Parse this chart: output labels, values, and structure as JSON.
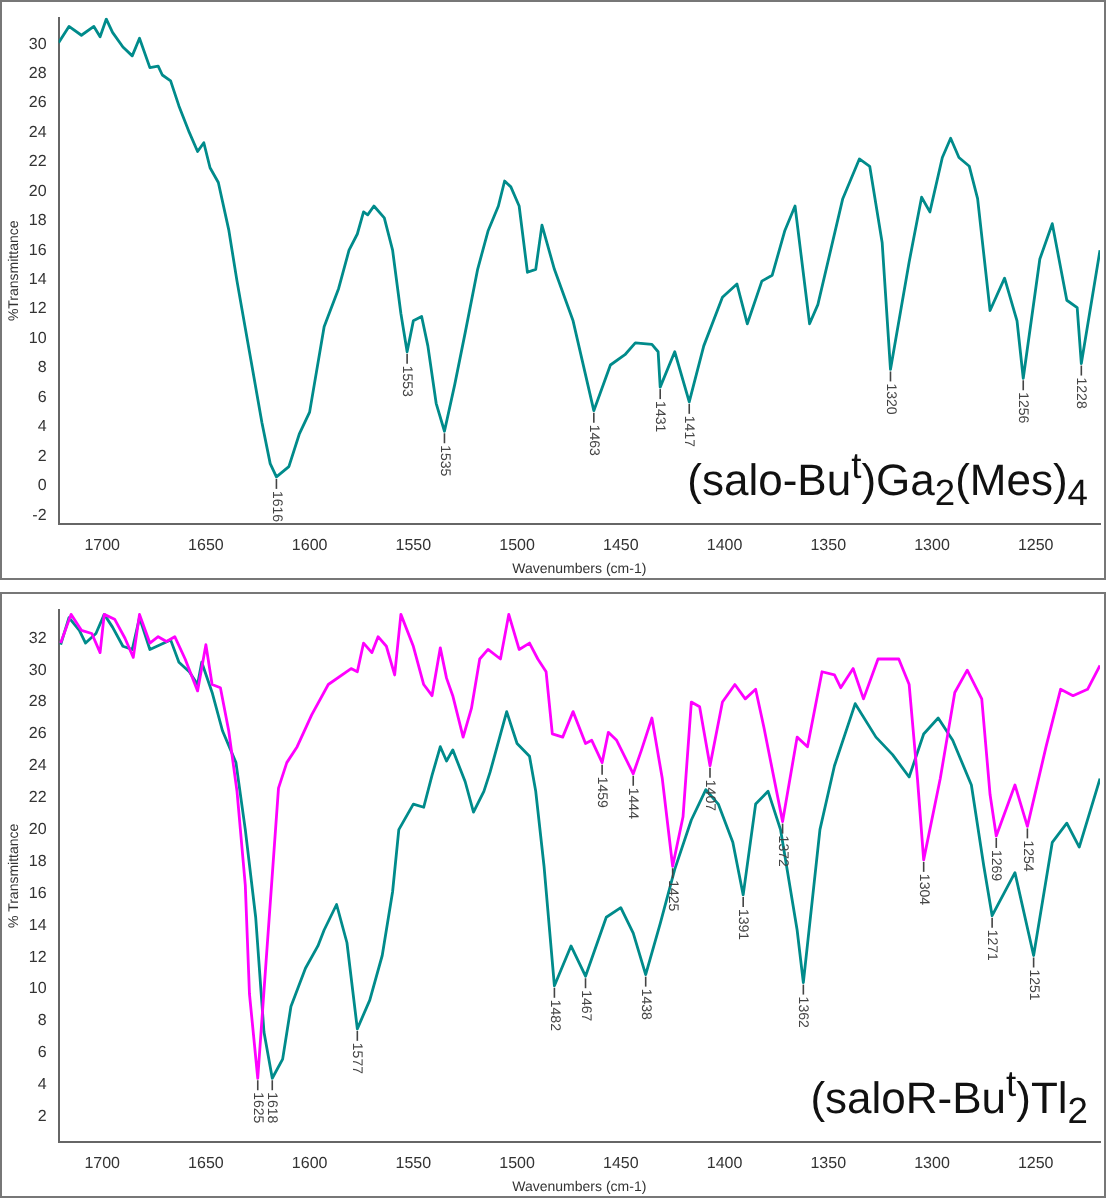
{
  "chart_data": [
    {
      "type": "line",
      "title": "(salo-Bu$^{t}$)Ga$_{2}$(Mes)$_{4}$",
      "xlabel": "Wavenumbers (cm-1)",
      "ylabel": "%Transmittance",
      "xlim": [
        1721,
        1219
      ],
      "ylim": [
        -2.6,
        31.8
      ],
      "xticks": [
        1700,
        1650,
        1600,
        1550,
        1500,
        1450,
        1400,
        1350,
        1300,
        1250
      ],
      "yticks": [
        -2,
        0,
        2,
        4,
        6,
        8,
        10,
        12,
        14,
        16,
        18,
        20,
        22,
        24,
        26,
        28,
        30
      ],
      "series": [
        {
          "color": "#008b8b",
          "x": [
            1721,
            1716,
            1710,
            1704,
            1701,
            1698,
            1695,
            1690,
            1685.5,
            1682,
            1677,
            1673,
            1671,
            1667,
            1663,
            1658,
            1654,
            1651,
            1648,
            1644,
            1639,
            1635,
            1629,
            1623,
            1619,
            1616,
            1610,
            1605,
            1600,
            1593,
            1586,
            1581,
            1577,
            1574,
            1572,
            1569,
            1564,
            1560,
            1556,
            1553,
            1550,
            1546,
            1543,
            1539,
            1535,
            1530,
            1525,
            1519,
            1514,
            1509,
            1506,
            1503,
            1499,
            1495,
            1491,
            1488,
            1482,
            1473,
            1463,
            1455,
            1448,
            1443,
            1435,
            1432,
            1431,
            1424,
            1417,
            1410,
            1401,
            1394,
            1389,
            1382,
            1377,
            1371,
            1366,
            1359,
            1355,
            1343,
            1335,
            1330,
            1324,
            1320,
            1311,
            1305,
            1301,
            1295,
            1291,
            1287,
            1282,
            1278,
            1272,
            1265,
            1259,
            1256,
            1248,
            1242,
            1235,
            1230,
            1228,
            1219
          ],
          "values": [
            30.1,
            31.2,
            30.6,
            31.2,
            30.5,
            31.7,
            30.8,
            29.8,
            29.2,
            30.4,
            28.4,
            28.5,
            27.9,
            27.5,
            25.8,
            24.0,
            22.7,
            23.3,
            21.6,
            20.6,
            17.4,
            13.9,
            9.1,
            4.3,
            1.5,
            0.6,
            1.3,
            3.5,
            5.0,
            10.8,
            13.4,
            16.0,
            17.1,
            18.6,
            18.4,
            19.0,
            18.2,
            16.0,
            11.7,
            9.1,
            11.2,
            11.5,
            9.5,
            5.6,
            3.7,
            6.9,
            10.4,
            14.7,
            17.3,
            19.0,
            20.7,
            20.3,
            19.0,
            14.5,
            14.7,
            17.7,
            14.7,
            11.2,
            5.1,
            8.2,
            8.9,
            9.7,
            9.6,
            9.1,
            6.7,
            9.1,
            5.7,
            9.5,
            12.8,
            13.7,
            11.0,
            13.9,
            14.3,
            17.3,
            19.0,
            11.0,
            12.3,
            19.5,
            22.2,
            21.7,
            16.5,
            7.9,
            15.2,
            19.6,
            18.6,
            22.3,
            23.6,
            22.3,
            21.7,
            19.5,
            11.9,
            14.1,
            11.2,
            7.3,
            15.4,
            17.8,
            12.6,
            12.1,
            8.3,
            16.0
          ]
        }
      ],
      "annotations": [
        {
          "text": "1616",
          "x": 1616,
          "y": 0.6
        },
        {
          "text": "1553",
          "x": 1553,
          "y": 9.1
        },
        {
          "text": "1535",
          "x": 1535,
          "y": 3.7
        },
        {
          "text": "1463",
          "x": 1463,
          "y": 5.1
        },
        {
          "text": "1431",
          "x": 1431,
          "y": 6.7
        },
        {
          "text": "1417",
          "x": 1417,
          "y": 5.7
        },
        {
          "text": "1320",
          "x": 1320,
          "y": 7.9
        },
        {
          "text": "1256",
          "x": 1256,
          "y": 7.3
        },
        {
          "text": "1228",
          "x": 1228,
          "y": 8.3
        }
      ]
    },
    {
      "type": "line",
      "title": "(saloR-Bu$^{t}$)Tl$_{2}$",
      "xlabel": "Wavenumbers (cm-1)",
      "ylabel": "% Transmittance",
      "xlim": [
        1721,
        1219
      ],
      "ylim": [
        0.4,
        33.8
      ],
      "xticks": [
        1700,
        1650,
        1600,
        1550,
        1500,
        1450,
        1400,
        1350,
        1300,
        1250
      ],
      "yticks": [
        2,
        4,
        6,
        8,
        10,
        12,
        14,
        16,
        18,
        20,
        22,
        24,
        26,
        28,
        30,
        32
      ],
      "series": [
        {
          "color": "#ff00ff",
          "x": [
            1720,
            1715,
            1710,
            1705,
            1701,
            1699,
            1694,
            1689,
            1685,
            1682,
            1677,
            1673,
            1669,
            1665,
            1660,
            1654,
            1650,
            1647,
            1643,
            1639,
            1635,
            1631,
            1629,
            1625,
            1621,
            1615,
            1611,
            1606,
            1599,
            1591,
            1580,
            1577,
            1574,
            1570,
            1567,
            1563,
            1559,
            1556,
            1550,
            1545,
            1541,
            1537,
            1534,
            1531,
            1526,
            1522,
            1518,
            1514,
            1508,
            1504,
            1499,
            1494,
            1490,
            1486,
            1483,
            1478,
            1473,
            1467,
            1464,
            1459,
            1456,
            1452,
            1444,
            1440,
            1435,
            1430,
            1425,
            1420,
            1416,
            1412,
            1407,
            1401,
            1395,
            1390,
            1385,
            1381,
            1372,
            1365,
            1360,
            1353,
            1347,
            1344,
            1338,
            1333,
            1326,
            1316,
            1311,
            1307,
            1304,
            1296,
            1289,
            1283,
            1276,
            1272,
            1269,
            1260,
            1254,
            1245,
            1238,
            1232,
            1225,
            1219
          ],
          "values": [
            31.7,
            33.5,
            32.5,
            32.3,
            31.1,
            33.5,
            33.2,
            32.0,
            30.8,
            33.5,
            31.7,
            32.1,
            31.8,
            32.1,
            30.7,
            28.7,
            31.6,
            29.1,
            28.9,
            26.2,
            22.4,
            16.5,
            9.7,
            4.4,
            11.7,
            22.6,
            24.2,
            25.2,
            27.2,
            29.1,
            30.1,
            29.9,
            31.7,
            31.1,
            32.1,
            31.5,
            29.7,
            33.5,
            31.5,
            29.1,
            28.4,
            31.4,
            29.5,
            28.4,
            25.8,
            27.6,
            30.7,
            31.3,
            30.7,
            33.5,
            31.3,
            31.7,
            30.7,
            29.9,
            26.0,
            25.8,
            27.4,
            25.4,
            25.6,
            24.2,
            26.1,
            25.6,
            23.5,
            25.0,
            27.0,
            23.2,
            17.7,
            20.8,
            28.0,
            27.7,
            24.0,
            28.0,
            29.1,
            28.2,
            28.8,
            26.4,
            20.5,
            25.8,
            25.2,
            29.9,
            29.7,
            28.9,
            30.1,
            28.2,
            30.7,
            30.7,
            29.1,
            23.2,
            18.1,
            23.2,
            28.6,
            30.0,
            28.2,
            22.2,
            19.6,
            22.8,
            20.2,
            25.2,
            28.8,
            28.4,
            28.8,
            30.3
          ]
        },
        {
          "color": "#008b8b",
          "x": [
            1720,
            1716,
            1711,
            1708,
            1703,
            1699,
            1695,
            1690,
            1685.5,
            1682,
            1677,
            1672,
            1667,
            1663,
            1658,
            1654,
            1652,
            1647,
            1642,
            1635.5,
            1631,
            1626,
            1622,
            1618,
            1613,
            1609,
            1602,
            1596,
            1593,
            1587,
            1582,
            1577,
            1571,
            1565,
            1560,
            1557,
            1550,
            1545,
            1541,
            1537,
            1534,
            1531,
            1525,
            1521,
            1516,
            1513,
            1505,
            1500,
            1494,
            1491,
            1487,
            1482,
            1474,
            1467,
            1457,
            1450,
            1444,
            1438,
            1431,
            1424,
            1416,
            1409,
            1403,
            1396,
            1391,
            1385,
            1379,
            1373,
            1365,
            1362,
            1354,
            1347,
            1337,
            1327,
            1319,
            1311,
            1304,
            1297,
            1290,
            1281,
            1275,
            1271,
            1260,
            1251,
            1242,
            1235,
            1229,
            1219
          ],
          "values": [
            31.6,
            33.3,
            32.5,
            31.7,
            32.3,
            33.5,
            32.7,
            31.5,
            31.3,
            33.3,
            31.3,
            31.6,
            31.9,
            30.5,
            29.9,
            29.1,
            30.5,
            28.6,
            26.2,
            24.2,
            20.0,
            14.5,
            7.3,
            4.4,
            5.6,
            8.9,
            11.3,
            12.7,
            13.7,
            15.3,
            12.9,
            7.5,
            9.3,
            12.1,
            16.1,
            20.0,
            21.6,
            21.4,
            23.4,
            25.2,
            24.3,
            25.0,
            23.0,
            21.1,
            22.4,
            23.6,
            27.4,
            25.4,
            24.6,
            22.4,
            17.7,
            10.2,
            12.7,
            10.8,
            14.5,
            15.1,
            13.5,
            10.9,
            14.1,
            17.5,
            20.6,
            22.5,
            21.6,
            19.2,
            15.9,
            21.6,
            22.4,
            20.0,
            13.7,
            10.4,
            20.0,
            24.0,
            27.9,
            25.8,
            24.7,
            23.3,
            26.0,
            27.0,
            25.6,
            22.8,
            17.7,
            14.6,
            17.3,
            12.1,
            19.2,
            20.4,
            18.9,
            23.2
          ]
        }
      ],
      "annotations": [
        {
          "text": "1625",
          "x": 1625,
          "y": 4.4
        },
        {
          "text": "1618",
          "x": 1618,
          "y": 4.4
        },
        {
          "text": "1577",
          "x": 1577,
          "y": 7.5
        },
        {
          "text": "1482",
          "x": 1482,
          "y": 10.2
        },
        {
          "text": "1467",
          "x": 1467,
          "y": 10.8
        },
        {
          "text": "1459",
          "x": 1459,
          "y": 24.2
        },
        {
          "text": "1444",
          "x": 1444,
          "y": 23.5
        },
        {
          "text": "1438",
          "x": 1438,
          "y": 10.9
        },
        {
          "text": "1425",
          "x": 1425,
          "y": 17.7
        },
        {
          "text": "1407",
          "x": 1407,
          "y": 24.0
        },
        {
          "text": "1391",
          "x": 1391,
          "y": 15.9
        },
        {
          "text": "1372",
          "x": 1372,
          "y": 20.5
        },
        {
          "text": "1362",
          "x": 1362,
          "y": 10.4
        },
        {
          "text": "1304",
          "x": 1304,
          "y": 18.1
        },
        {
          "text": "1271",
          "x": 1271,
          "y": 14.6
        },
        {
          "text": "1269",
          "x": 1269,
          "y": 19.6
        },
        {
          "text": "1254",
          "x": 1254,
          "y": 20.2
        },
        {
          "text": "1251",
          "x": 1251,
          "y": 12.1
        }
      ]
    }
  ]
}
